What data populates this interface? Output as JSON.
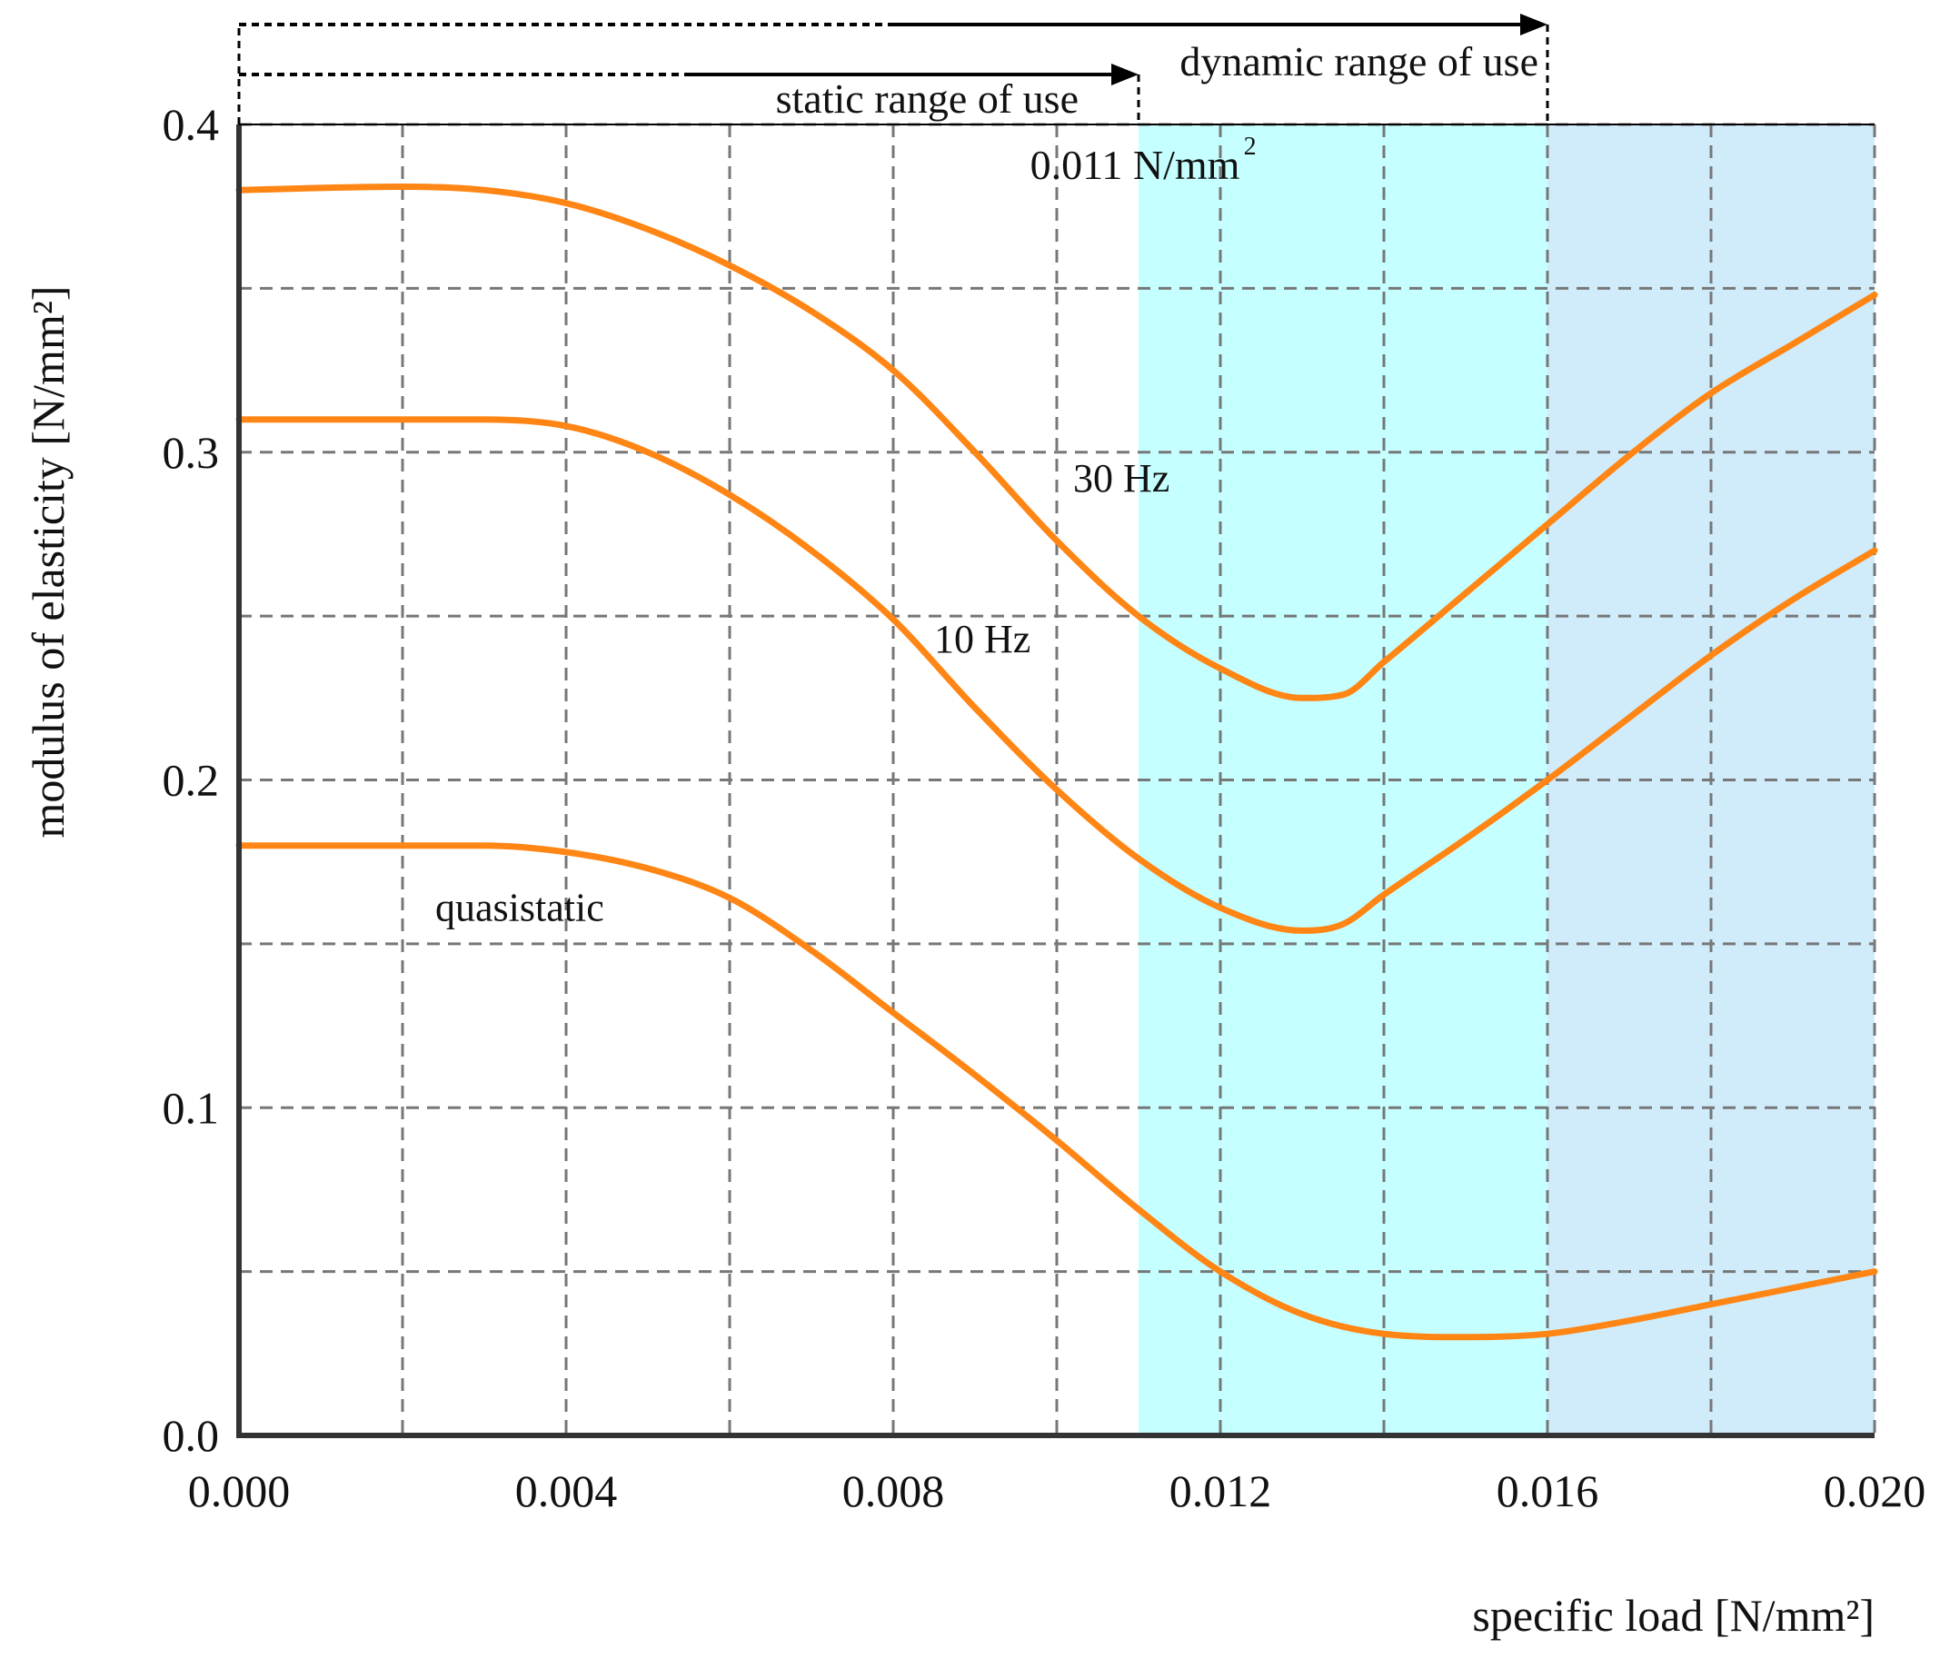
{
  "colors": {
    "static_zone": "#c6ffff",
    "dynamic_zone": "#d0ecfb",
    "curve": "#ff8514",
    "grid": "#777777",
    "axis": "#333333"
  },
  "chart_data": {
    "type": "line",
    "xlabel": "specific load [N/mm²]",
    "ylabel": "modulus of elasticity [N/mm²]",
    "xlim": [
      0,
      0.02
    ],
    "ylim": [
      0,
      0.4
    ],
    "x_ticks": [
      0,
      0.002,
      0.004,
      0.006,
      0.008,
      0.01,
      0.012,
      0.014,
      0.016,
      0.018,
      0.02
    ],
    "x_tick_labels": [
      "0.000",
      "0.004",
      "0.008",
      "0.012",
      "0.016",
      "0.020"
    ],
    "x_tick_label_values": [
      0,
      0.004,
      0.008,
      0.012,
      0.016,
      0.02
    ],
    "y_ticks": [
      0,
      0.05,
      0.1,
      0.15,
      0.2,
      0.25,
      0.3,
      0.35,
      0.4
    ],
    "y_tick_labels": [
      "0.0",
      "0.1",
      "0.2",
      "0.3",
      "0.4"
    ],
    "y_tick_label_values": [
      0,
      0.1,
      0.2,
      0.3,
      0.4
    ],
    "grid": true,
    "regions": [
      {
        "name": "static-range-zone",
        "x_start": 0.011,
        "x_end": 0.016,
        "color_key": "static_zone"
      },
      {
        "name": "dynamic-range-zone",
        "x_start": 0.016,
        "x_end": 0.02,
        "color_key": "dynamic_zone"
      }
    ],
    "series": [
      {
        "name": "30 Hz",
        "label": "30 Hz",
        "label_at": [
          0.0102,
          0.288
        ],
        "x": [
          0,
          0.002,
          0.003,
          0.004,
          0.005,
          0.006,
          0.007,
          0.008,
          0.009,
          0.01,
          0.011,
          0.012,
          0.013,
          0.0135,
          0.014,
          0.015,
          0.016,
          0.017,
          0.018,
          0.019,
          0.02
        ],
        "y": [
          0.38,
          0.381,
          0.38,
          0.376,
          0.368,
          0.357,
          0.343,
          0.325,
          0.3,
          0.273,
          0.25,
          0.234,
          0.225,
          0.226,
          0.236,
          0.257,
          0.278,
          0.299,
          0.318,
          0.333,
          0.348
        ]
      },
      {
        "name": "10 Hz",
        "label": "10 Hz",
        "label_at": [
          0.0085,
          0.239
        ],
        "x": [
          0,
          0.002,
          0.003,
          0.004,
          0.005,
          0.006,
          0.007,
          0.008,
          0.009,
          0.01,
          0.011,
          0.012,
          0.013,
          0.0135,
          0.014,
          0.015,
          0.016,
          0.017,
          0.018,
          0.019,
          0.02
        ],
        "y": [
          0.31,
          0.31,
          0.31,
          0.308,
          0.3,
          0.287,
          0.27,
          0.249,
          0.222,
          0.197,
          0.176,
          0.161,
          0.154,
          0.156,
          0.165,
          0.182,
          0.2,
          0.219,
          0.238,
          0.255,
          0.27
        ],
        "note_value": 0.2
      },
      {
        "name": "quasistatic",
        "label": "quasistatic",
        "label_at": [
          0.0024,
          0.157
        ],
        "x": [
          0,
          0.002,
          0.003,
          0.004,
          0.005,
          0.006,
          0.007,
          0.008,
          0.009,
          0.01,
          0.011,
          0.012,
          0.013,
          0.014,
          0.015,
          0.016,
          0.017,
          0.018,
          0.019,
          0.02
        ],
        "y": [
          0.18,
          0.18,
          0.18,
          0.178,
          0.173,
          0.164,
          0.148,
          0.129,
          0.11,
          0.09,
          0.069,
          0.05,
          0.037,
          0.031,
          0.03,
          0.031,
          0.035,
          0.04,
          0.045,
          0.05
        ]
      }
    ],
    "annotations": {
      "static_range": {
        "text": "static range of use",
        "x_start": 0,
        "x_end": 0.011
      },
      "dynamic_range": {
        "text": "dynamic range of use",
        "x_start": 0,
        "x_end": 0.016
      },
      "threshold": {
        "text": "0.011 N/mm",
        "superscript": "2",
        "x": 0.011
      }
    }
  }
}
